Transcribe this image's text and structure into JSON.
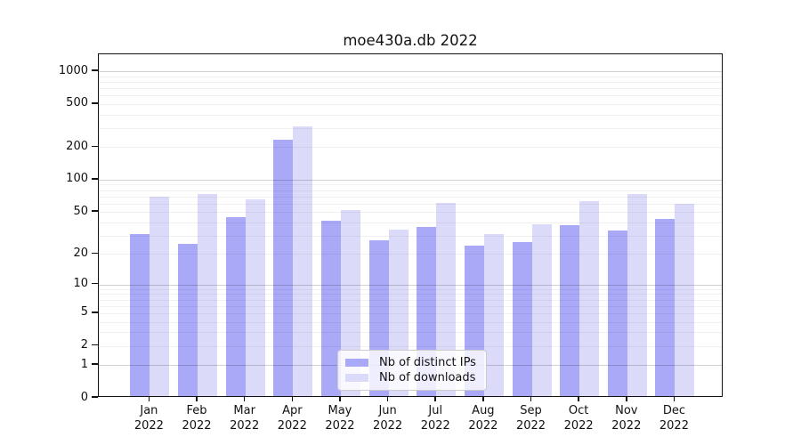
{
  "figure": {
    "title": "moe430a.db 2022"
  },
  "chart_data": {
    "type": "bar",
    "title": "moe430a.db 2022",
    "categories": [
      "Jan",
      "Feb",
      "Mar",
      "Apr",
      "May",
      "Jun",
      "Jul",
      "Aug",
      "Sep",
      "Oct",
      "Nov",
      "Dec"
    ],
    "category_sub_label": "2022",
    "series": [
      {
        "name": "Nb of distinct IPs",
        "color": "#a9a9f7",
        "values": [
          30,
          24,
          43,
          227,
          40,
          26,
          35,
          23,
          25,
          36,
          32,
          41
        ]
      },
      {
        "name": "Nb of downloads",
        "color": "#dbdbf9",
        "values": [
          67,
          71,
          63,
          300,
          50,
          33,
          59,
          30,
          37,
          61,
          71,
          57
        ]
      }
    ],
    "xlabel": "",
    "ylabel": "",
    "yscale": "log10(1+y)",
    "yticks": [
      0,
      1,
      2,
      5,
      10,
      20,
      50,
      100,
      200,
      500,
      1000
    ],
    "ylim": [
      0,
      1430
    ],
    "grid": true,
    "gridline_major_values": [
      1,
      10,
      100,
      1000
    ],
    "legend_position": "lower center",
    "bar_group": "side-by-side"
  }
}
